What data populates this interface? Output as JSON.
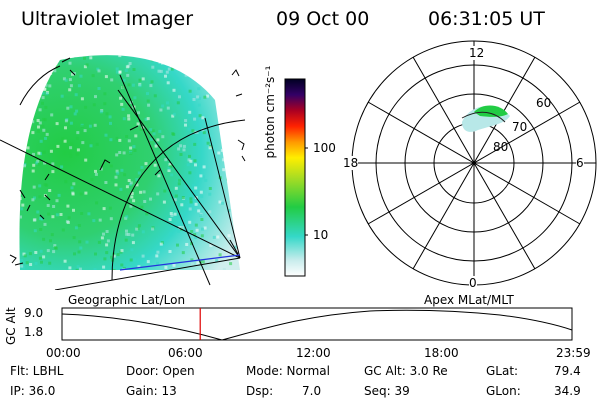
{
  "header": {
    "instrument": "Ultraviolet Imager",
    "date": "09 Oct 00",
    "time": "06:31:05 UT"
  },
  "colorbar": {
    "unit_label": "photon cm⁻²s⁻¹",
    "tick_100": "100",
    "tick_10": "10"
  },
  "polar": {
    "mlt_labels": {
      "top": "12",
      "left": "18",
      "right": "6",
      "bottom": "0"
    },
    "lat_labels": [
      "60",
      "70",
      "80"
    ]
  },
  "panel_labels": {
    "geographic": "Geographic Lat/Lon",
    "apex": "Apex MLat/MLT"
  },
  "altitude_plot": {
    "ylabel": "GC Alt",
    "ytick_top": "9.0",
    "ytick_bottom": "1.8",
    "xticks": [
      "00:00",
      "06:00",
      "12:00",
      "18:00",
      "23:59"
    ],
    "current_time_fraction": 0.271
  },
  "info": {
    "flt": "Flt: LBHL",
    "ip": "IP: 36.0",
    "door": "Door: Open",
    "gain": "Gain: 13",
    "mode": "Mode: Normal",
    "dsp_label": "Dsp:",
    "dsp_value": "7.0",
    "gc_alt": "GC Alt: 3.0 Re",
    "seq": "Seq: 39",
    "glat_label": "GLat:",
    "glat_value": "79.4",
    "glon_label": "GLon:",
    "glon_value": "34.9"
  },
  "colors": {
    "emission_green": "#22cc44",
    "emission_cyan": "#2fd8c8",
    "emission_light": "#c8ecec",
    "marker_red": "#dd0000",
    "track_blue": "#2233dd"
  }
}
